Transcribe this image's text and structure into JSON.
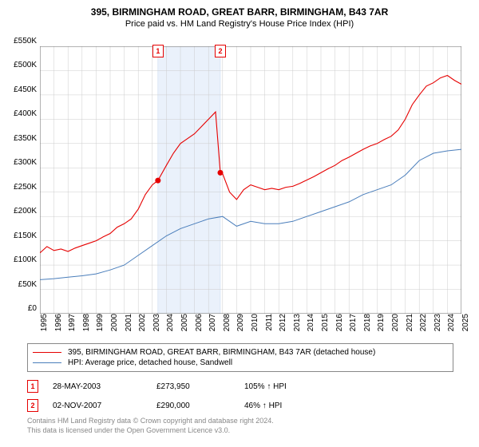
{
  "title": "395, BIRMINGHAM ROAD, GREAT BARR, BIRMINGHAM, B43 7AR",
  "subtitle": "Price paid vs. HM Land Registry's House Price Index (HPI)",
  "chart": {
    "type": "line",
    "background_color": "#ffffff",
    "grid_color": "#cccccc",
    "axis_color": "#666666",
    "ylim": [
      0,
      550000
    ],
    "ytick_step": 50000,
    "y_ticks": [
      "£0",
      "£50K",
      "£100K",
      "£150K",
      "£200K",
      "£250K",
      "£300K",
      "£350K",
      "£400K",
      "£450K",
      "£500K",
      "£550K"
    ],
    "x_years": [
      1995,
      1996,
      1997,
      1998,
      1999,
      2000,
      2001,
      2002,
      2003,
      2004,
      2005,
      2006,
      2007,
      2008,
      2009,
      2010,
      2011,
      2012,
      2013,
      2014,
      2015,
      2016,
      2017,
      2018,
      2019,
      2020,
      2021,
      2022,
      2023,
      2024,
      2025
    ],
    "highlight_band": {
      "x_start": 2003.4,
      "x_end": 2007.84,
      "fill": "#eaf1fb",
      "border": "#c5d6ef"
    },
    "series": [
      {
        "name": "property",
        "label": "395, BIRMINGHAM ROAD, GREAT BARR, BIRMINGHAM, B43 7AR (detached house)",
        "color": "#e60000",
        "line_width": 1.1,
        "points": [
          [
            1995.0,
            125000
          ],
          [
            1995.5,
            138000
          ],
          [
            1996.0,
            130000
          ],
          [
            1996.5,
            133000
          ],
          [
            1997.0,
            128000
          ],
          [
            1997.5,
            135000
          ],
          [
            1998.0,
            140000
          ],
          [
            1998.5,
            145000
          ],
          [
            1999.0,
            150000
          ],
          [
            1999.5,
            158000
          ],
          [
            2000.0,
            165000
          ],
          [
            2000.5,
            178000
          ],
          [
            2001.0,
            185000
          ],
          [
            2001.5,
            195000
          ],
          [
            2002.0,
            215000
          ],
          [
            2002.5,
            245000
          ],
          [
            2003.0,
            265000
          ],
          [
            2003.4,
            273950
          ],
          [
            2004.0,
            305000
          ],
          [
            2004.5,
            330000
          ],
          [
            2005.0,
            350000
          ],
          [
            2005.5,
            360000
          ],
          [
            2006.0,
            370000
          ],
          [
            2006.5,
            385000
          ],
          [
            2007.0,
            400000
          ],
          [
            2007.5,
            415000
          ],
          [
            2007.84,
            290000
          ],
          [
            2008.0,
            288000
          ],
          [
            2008.5,
            250000
          ],
          [
            2009.0,
            235000
          ],
          [
            2009.5,
            255000
          ],
          [
            2010.0,
            265000
          ],
          [
            2010.5,
            260000
          ],
          [
            2011.0,
            255000
          ],
          [
            2011.5,
            258000
          ],
          [
            2012.0,
            255000
          ],
          [
            2012.5,
            260000
          ],
          [
            2013.0,
            262000
          ],
          [
            2013.5,
            268000
          ],
          [
            2014.0,
            275000
          ],
          [
            2014.5,
            282000
          ],
          [
            2015.0,
            290000
          ],
          [
            2015.5,
            298000
          ],
          [
            2016.0,
            305000
          ],
          [
            2016.5,
            315000
          ],
          [
            2017.0,
            322000
          ],
          [
            2017.5,
            330000
          ],
          [
            2018.0,
            338000
          ],
          [
            2018.5,
            345000
          ],
          [
            2019.0,
            350000
          ],
          [
            2019.5,
            358000
          ],
          [
            2020.0,
            365000
          ],
          [
            2020.5,
            378000
          ],
          [
            2021.0,
            400000
          ],
          [
            2021.5,
            430000
          ],
          [
            2022.0,
            450000
          ],
          [
            2022.5,
            468000
          ],
          [
            2023.0,
            475000
          ],
          [
            2023.5,
            485000
          ],
          [
            2024.0,
            490000
          ],
          [
            2024.5,
            480000
          ],
          [
            2025.0,
            472000
          ]
        ]
      },
      {
        "name": "hpi",
        "label": "HPI: Average price, detached house, Sandwell",
        "color": "#4a7ebb",
        "line_width": 1.0,
        "points": [
          [
            1995.0,
            70000
          ],
          [
            1996.0,
            72000
          ],
          [
            1997.0,
            75000
          ],
          [
            1998.0,
            78000
          ],
          [
            1999.0,
            82000
          ],
          [
            2000.0,
            90000
          ],
          [
            2001.0,
            100000
          ],
          [
            2002.0,
            120000
          ],
          [
            2003.0,
            140000
          ],
          [
            2004.0,
            160000
          ],
          [
            2005.0,
            175000
          ],
          [
            2006.0,
            185000
          ],
          [
            2007.0,
            195000
          ],
          [
            2008.0,
            200000
          ],
          [
            2009.0,
            180000
          ],
          [
            2010.0,
            190000
          ],
          [
            2011.0,
            185000
          ],
          [
            2012.0,
            185000
          ],
          [
            2013.0,
            190000
          ],
          [
            2014.0,
            200000
          ],
          [
            2015.0,
            210000
          ],
          [
            2016.0,
            220000
          ],
          [
            2017.0,
            230000
          ],
          [
            2018.0,
            245000
          ],
          [
            2019.0,
            255000
          ],
          [
            2020.0,
            265000
          ],
          [
            2021.0,
            285000
          ],
          [
            2022.0,
            315000
          ],
          [
            2023.0,
            330000
          ],
          [
            2024.0,
            335000
          ],
          [
            2025.0,
            338000
          ]
        ]
      }
    ],
    "sale_markers": [
      {
        "n": 1,
        "x": 2003.4,
        "y": 273950
      },
      {
        "n": 2,
        "x": 2007.84,
        "y": 290000
      }
    ],
    "marker_style": {
      "fill": "#e60000",
      "radius": 3.5
    }
  },
  "legend": {
    "border_color": "#888888"
  },
  "sales": [
    {
      "n": "1",
      "date": "28-MAY-2003",
      "price": "£273,950",
      "pct": "105% ↑ HPI"
    },
    {
      "n": "2",
      "date": "02-NOV-2007",
      "price": "£290,000",
      "pct": "46% ↑ HPI"
    }
  ],
  "footer": {
    "line1": "Contains HM Land Registry data © Crown copyright and database right 2024.",
    "line2": "This data is licensed under the Open Government Licence v3.0."
  }
}
